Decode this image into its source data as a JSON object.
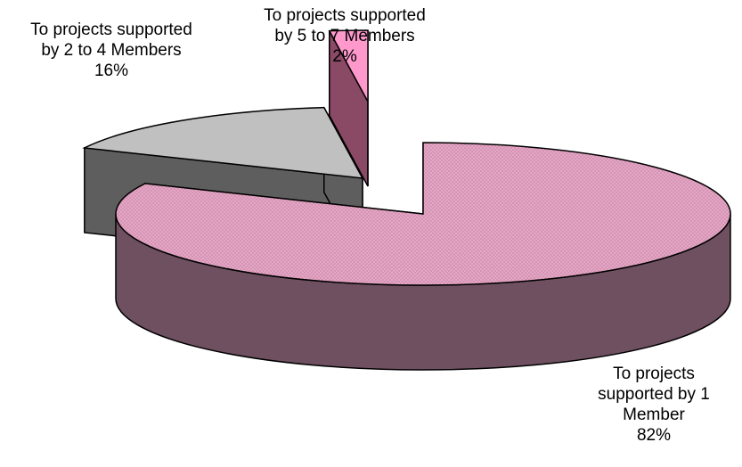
{
  "chart_data": {
    "type": "pie",
    "style": "3d-exploded",
    "slices": [
      {
        "label_lines": [
          "To projects",
          "supported by 1",
          "Member"
        ],
        "percent_label": "82%",
        "value": 82,
        "color": "#e8a8c8",
        "side_color": "#6e5060",
        "pattern": "crosshatch"
      },
      {
        "label_lines": [
          "To projects supported",
          "by 2 to 4 Members"
        ],
        "percent_label": "16%",
        "value": 16,
        "color": "#c0c0c0",
        "side_color": "#5e5e5e",
        "pattern": "none"
      },
      {
        "label_lines": [
          "To projects supported",
          "by 5 to 7 Members"
        ],
        "percent_label": "2%",
        "value": 2,
        "color": "#ff99cc",
        "side_color": "#8a4a66",
        "pattern": "none"
      }
    ],
    "legend": "none"
  }
}
